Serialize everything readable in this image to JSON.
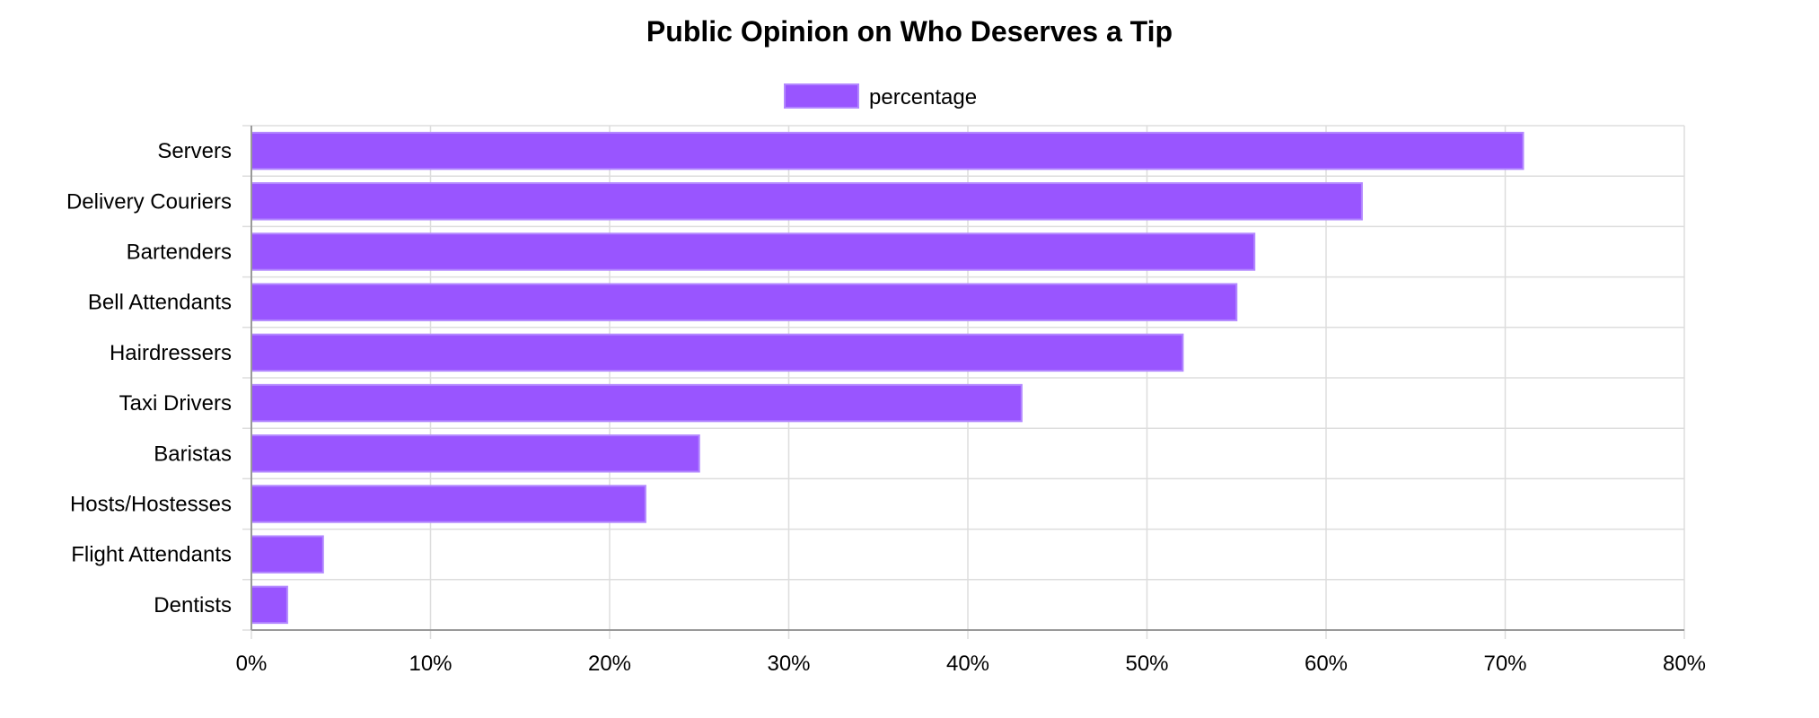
{
  "chart_data": {
    "type": "bar",
    "orientation": "horizontal",
    "title": "Public Opinion on Who Deserves a Tip",
    "xlabel": "",
    "ylabel": "",
    "categories": [
      "Servers",
      "Delivery Couriers",
      "Bartenders",
      "Bell Attendants",
      "Hairdressers",
      "Taxi Drivers",
      "Baristas",
      "Hosts/Hostesses",
      "Flight Attendants",
      "Dentists"
    ],
    "series": [
      {
        "name": "percentage",
        "values": [
          71,
          62,
          56,
          55,
          52,
          43,
          25,
          22,
          4,
          2
        ],
        "color": "#9955ff"
      }
    ],
    "xlim": [
      0,
      80
    ],
    "x_ticks": [
      "0%",
      "10%",
      "20%",
      "30%",
      "40%",
      "50%",
      "60%",
      "70%",
      "80%"
    ],
    "grid": true,
    "legend_position": "top-center",
    "colors": {
      "bar_fill": "#9955ff",
      "bar_stroke": "#b388ff",
      "grid": "#dddddd",
      "axis": "#999999"
    }
  }
}
